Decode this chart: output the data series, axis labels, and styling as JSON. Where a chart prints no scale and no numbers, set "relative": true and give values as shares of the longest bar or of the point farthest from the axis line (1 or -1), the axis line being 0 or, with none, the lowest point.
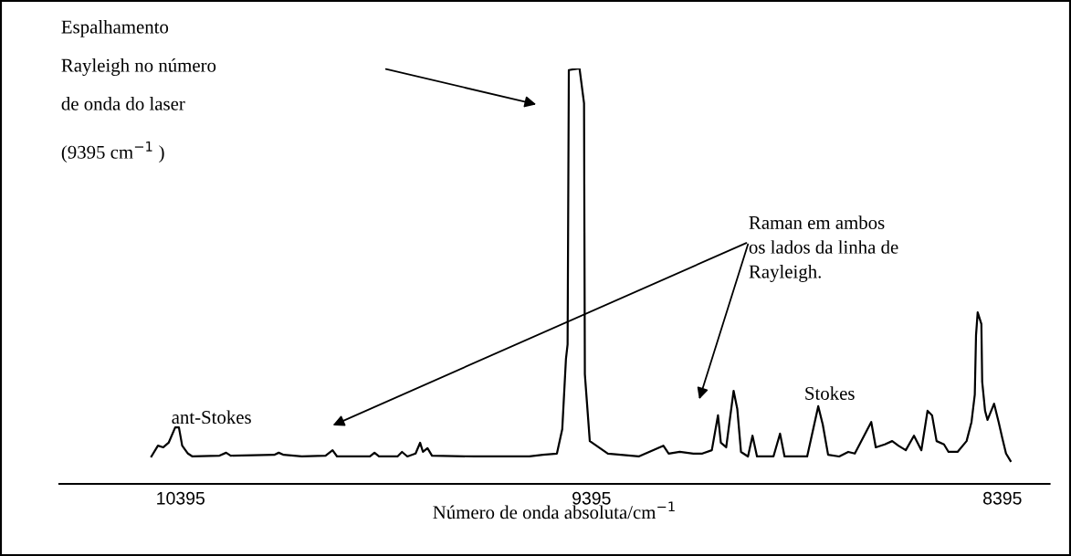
{
  "chart_data": {
    "type": "line",
    "relative": true,
    "color": "#000000",
    "xlabel": "Número de onda absoluta/cm$^{−1}$",
    "xlim": [
      10690,
      8280
    ],
    "xticks": [
      10395,
      9395,
      8395
    ],
    "x": [
      10466,
      10450,
      10437,
      10424,
      10408,
      10399,
      10391,
      10377,
      10366,
      10300,
      10284,
      10273,
      10167,
      10156,
      10144,
      10100,
      10042,
      10025,
      10014,
      9934,
      9923,
      9912,
      9867,
      9856,
      9843,
      9823,
      9812,
      9805,
      9794,
      9783,
      9679,
      9546,
      9513,
      9479,
      9466,
      9457,
      9453,
      9450,
      9424,
      9413,
      9411,
      9399,
      9355,
      9280,
      9220,
      9207,
      9180,
      9147,
      9125,
      9102,
      9087,
      9080,
      9067,
      9049,
      9040,
      9031,
      9014,
      9003,
      8992,
      8952,
      8936,
      8925,
      8870,
      8843,
      8832,
      8819,
      8792,
      8770,
      8754,
      8714,
      8703,
      8681,
      8663,
      8648,
      8630,
      8610,
      8592,
      8577,
      8566,
      8555,
      8537,
      8526,
      8504,
      8482,
      8470,
      8462,
      8459,
      8455,
      8446,
      8444,
      8437,
      8431,
      8415,
      8404,
      8395,
      8386,
      8375
    ],
    "values": [
      0.066,
      0.092,
      0.088,
      0.099,
      0.136,
      0.136,
      0.092,
      0.073,
      0.066,
      0.068,
      0.075,
      0.068,
      0.07,
      0.075,
      0.07,
      0.066,
      0.068,
      0.081,
      0.066,
      0.066,
      0.075,
      0.066,
      0.066,
      0.077,
      0.066,
      0.073,
      0.099,
      0.077,
      0.086,
      0.068,
      0.066,
      0.066,
      0.07,
      0.073,
      0.132,
      0.301,
      0.336,
      0.996,
      1.0,
      0.916,
      0.264,
      0.103,
      0.073,
      0.066,
      0.092,
      0.073,
      0.077,
      0.073,
      0.073,
      0.081,
      0.165,
      0.099,
      0.088,
      0.224,
      0.18,
      0.077,
      0.066,
      0.116,
      0.066,
      0.066,
      0.121,
      0.066,
      0.066,
      0.187,
      0.143,
      0.07,
      0.066,
      0.077,
      0.073,
      0.149,
      0.088,
      0.095,
      0.103,
      0.092,
      0.081,
      0.116,
      0.081,
      0.176,
      0.165,
      0.103,
      0.095,
      0.077,
      0.077,
      0.103,
      0.149,
      0.215,
      0.358,
      0.413,
      0.385,
      0.246,
      0.176,
      0.154,
      0.193,
      0.149,
      0.11,
      0.073,
      0.055
    ],
    "annotations": [
      "Espalhamento\nRayleigh no número\nde onda do laser\n(9395 cm$^{−1}$ )",
      "Raman em ambos\nos lados da linha de\nRayleigh.",
      "ant-Stokes",
      "Stokes"
    ]
  }
}
